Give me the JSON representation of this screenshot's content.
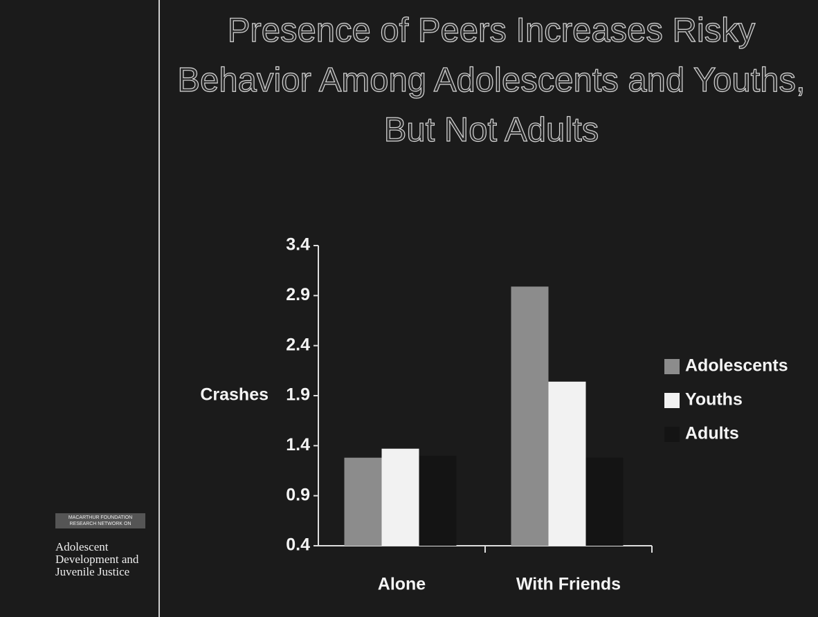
{
  "chart_data": {
    "type": "bar",
    "title": "Presence of Peers Increases Risky Behavior Among Adolescents and Youths, But Not Adults",
    "y_label": "Crashes",
    "categories": [
      "Alone",
      "With Friends"
    ],
    "series": [
      {
        "name": "Adolescents",
        "color": "#8c8c8c",
        "values": [
          1.28,
          2.99
        ]
      },
      {
        "name": "Youths",
        "color": "#f2f2f2",
        "values": [
          1.37,
          2.04
        ]
      },
      {
        "name": "Adults",
        "color": "#141414",
        "values": [
          1.3,
          1.28
        ]
      }
    ],
    "ylim": [
      0.4,
      3.4
    ],
    "yticks": [
      0.4,
      0.9,
      1.4,
      1.9,
      2.4,
      2.9,
      3.4
    ],
    "legend": "right",
    "grid": false
  },
  "logo": {
    "network": "MACARTHUR FOUNDATION RESEARCH NETWORK ON",
    "name": "Adolescent Development and Juvenile Justice"
  }
}
